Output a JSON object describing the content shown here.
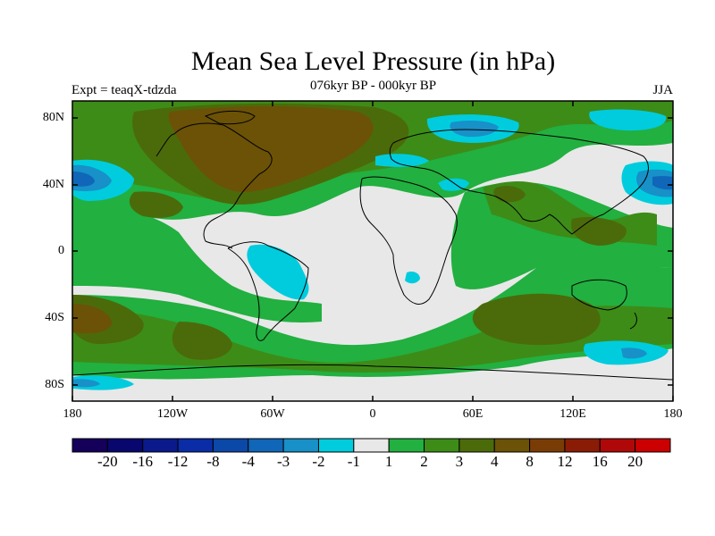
{
  "title": "Mean Sea Level Pressure (in hPa)",
  "left_string": "Expt = teaqX-tdzda",
  "center_string": "076kyr BP - 000kyr BP",
  "right_string": "JJA",
  "lat_labels": [
    "80N",
    "40N",
    "0",
    "40S",
    "80S"
  ],
  "lon_labels": [
    "180",
    "120W",
    "60W",
    "0",
    "60E",
    "120E",
    "180"
  ],
  "colorbar": {
    "colors": [
      "#14005a",
      "#07076e",
      "#0a1a8c",
      "#0a2ca6",
      "#0b48a8",
      "#1066b8",
      "#1890c8",
      "#00ccde",
      "#e8e8e8",
      "#22b040",
      "#3d8c18",
      "#4b6b0a",
      "#6b5206",
      "#7a3c05",
      "#8a1c05",
      "#b00808",
      "#cc0000"
    ],
    "labels": [
      "-20",
      "-16",
      "-12",
      "-8",
      "-4",
      "-3",
      "-2",
      "-1",
      "1",
      "2",
      "3",
      "4",
      "8",
      "12",
      "16",
      "20"
    ]
  },
  "colors": {
    "neutral": "#e8e8e8",
    "green": "#22b040",
    "dark_green": "#3d8c18",
    "olive": "#4b6b0a",
    "brown": "#6b5206",
    "cyan": "#00ccde",
    "light_blue": "#1890c8",
    "blue": "#1066b8"
  }
}
